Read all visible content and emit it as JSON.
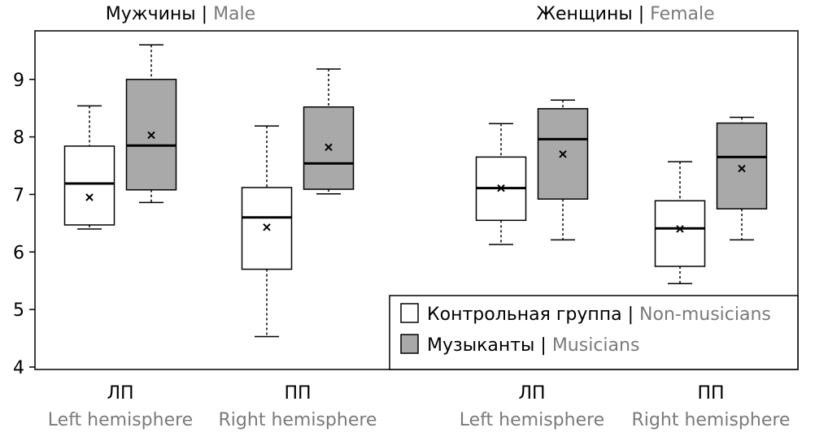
{
  "chart_data": {
    "type": "box",
    "panels": [
      {
        "title_ru": "Мужчины",
        "title_sep": " | ",
        "title_en": "Male"
      },
      {
        "title_ru": "Женщины",
        "title_sep": " | ",
        "title_en": "Female"
      }
    ],
    "yaxis": {
      "min": 4,
      "max": 9.8,
      "ticks": [
        "4",
        "5",
        "6",
        "7",
        "8",
        "9"
      ]
    },
    "grid": false,
    "categories": [
      {
        "ru": "ЛП",
        "en": "Left hemisphere"
      },
      {
        "ru": "ПП",
        "en": "Right hemisphere"
      },
      {
        "ru": "ЛП",
        "en": "Left hemisphere"
      },
      {
        "ru": "ПП",
        "en": "Right hemisphere"
      }
    ],
    "series": [
      {
        "name_ru": "Контрольная группа",
        "name_sep": " | ",
        "name_en": "Non-musicians",
        "color": "#ffffff",
        "boxes": [
          {
            "whisker_low": 6.4,
            "q1": 6.47,
            "median": 7.19,
            "q3": 7.84,
            "whisker_high": 8.54,
            "mean": 6.95
          },
          {
            "whisker_low": 4.53,
            "q1": 5.7,
            "median": 6.6,
            "q3": 7.12,
            "whisker_high": 8.19,
            "mean": 6.43
          },
          {
            "whisker_low": 6.13,
            "q1": 6.55,
            "median": 7.11,
            "q3": 7.65,
            "whisker_high": 8.23,
            "mean": 7.11
          },
          {
            "whisker_low": 5.45,
            "q1": 5.75,
            "median": 6.41,
            "q3": 6.89,
            "whisker_high": 7.57,
            "mean": 6.4
          }
        ]
      },
      {
        "name_ru": "Музыканты",
        "name_sep": " | ",
        "name_en": "Musicians",
        "color": "#a9a9a9",
        "boxes": [
          {
            "whisker_low": 6.86,
            "q1": 7.08,
            "median": 7.85,
            "q3": 9.0,
            "whisker_high": 9.6,
            "mean": 8.03
          },
          {
            "whisker_low": 7.01,
            "q1": 7.09,
            "median": 7.54,
            "q3": 8.52,
            "whisker_high": 9.18,
            "mean": 7.82
          },
          {
            "whisker_low": 6.21,
            "q1": 6.92,
            "median": 7.96,
            "q3": 8.49,
            "whisker_high": 8.64,
            "mean": 7.7
          },
          {
            "whisker_low": 6.21,
            "q1": 6.75,
            "median": 7.65,
            "q3": 8.24,
            "whisker_high": 8.34,
            "mean": 7.45
          }
        ]
      }
    ],
    "legend_position": "bottom-right",
    "mean_marker": "×"
  }
}
